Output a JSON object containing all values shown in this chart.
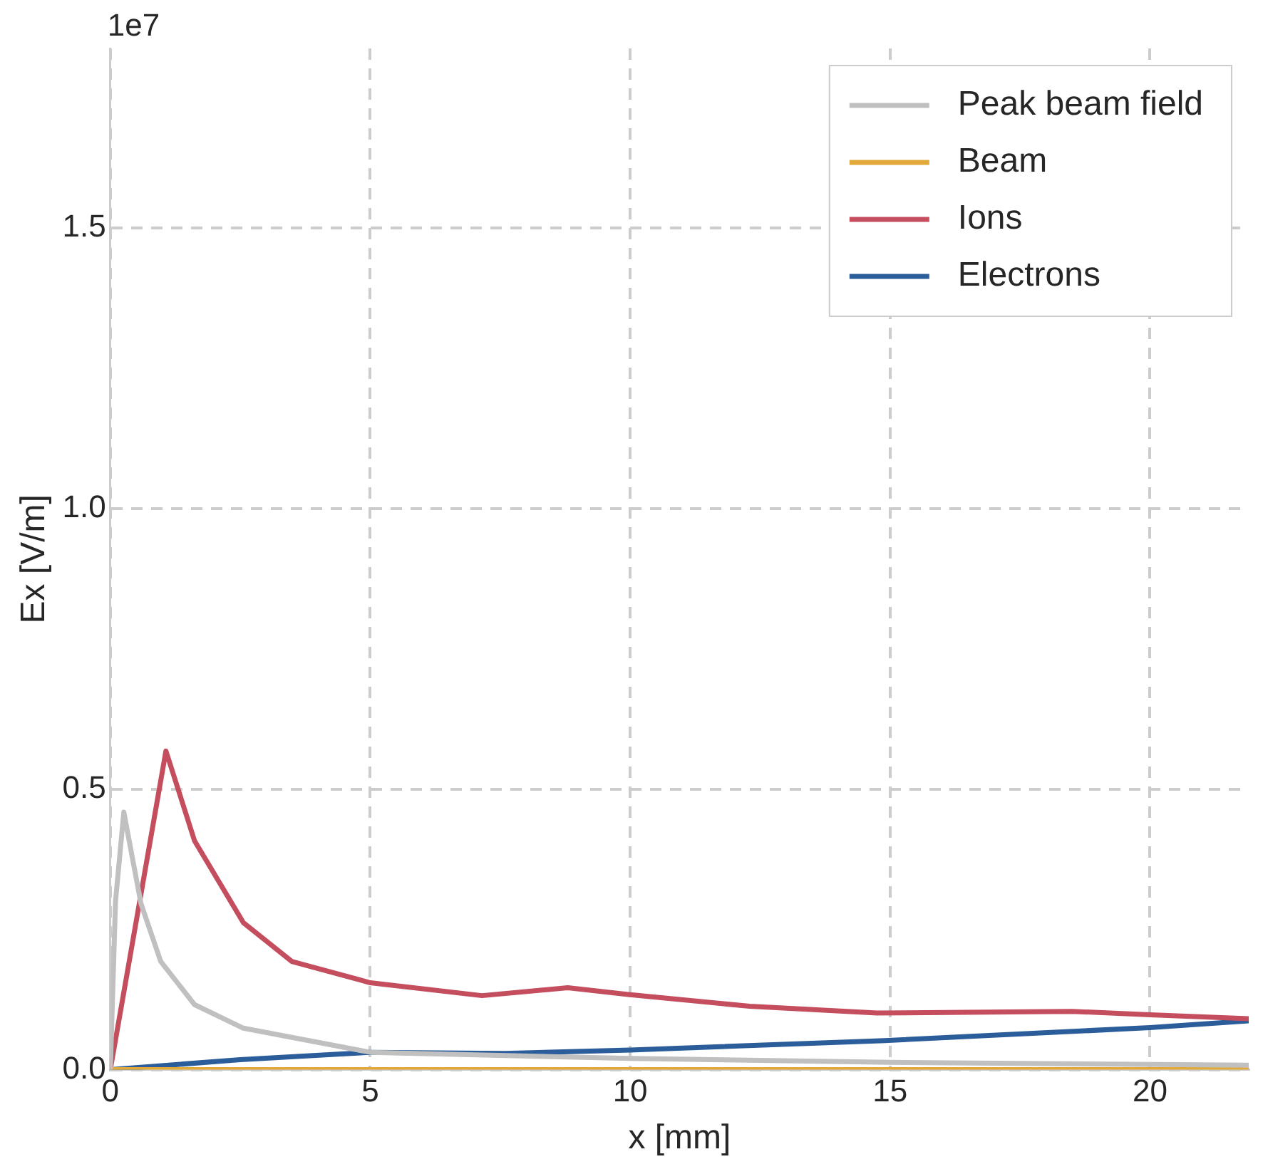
{
  "chart_data": {
    "type": "line",
    "xlabel": "x [mm]",
    "ylabel": "Ex [V/m]",
    "annotations": [
      "1e7"
    ],
    "xlim": [
      0,
      21.9
    ],
    "xticks": [
      0,
      5,
      10,
      15,
      20
    ],
    "ylim": [
      0,
      1.82
    ],
    "yticks": [
      {
        "value": 0,
        "label": "0.0"
      },
      {
        "value": 0.5,
        "label": "0.5"
      },
      {
        "value": 1,
        "label": "1.0"
      },
      {
        "value": 1.5,
        "label": "1.5"
      }
    ],
    "grid": true,
    "legend": "top right",
    "line_style": "solid",
    "marker": "none",
    "series": [
      {
        "name": "Peak beam field",
        "color": "#c0c0c0",
        "x": [
          0,
          0.1,
          0.26,
          0.59,
          0.97,
          1.62,
          2.56,
          5,
          10,
          15,
          21.9
        ],
        "values": [
          0,
          0.3,
          0.459,
          0.296,
          0.193,
          0.116,
          0.074,
          0.031,
          0.02,
          0.013,
          0.008
        ]
      },
      {
        "name": "Beam",
        "color": "#e0a93a",
        "x": [
          0,
          21.9
        ],
        "values": [
          0,
          0
        ]
      },
      {
        "name": "Ions",
        "color": "#c44e5e",
        "x": [
          0,
          1.07,
          1.62,
          2.56,
          3.49,
          5,
          7.15,
          8.8,
          9.96,
          12.3,
          14.75,
          18.5,
          20,
          21.9
        ],
        "values": [
          0,
          0.568,
          0.408,
          0.262,
          0.193,
          0.155,
          0.132,
          0.146,
          0.134,
          0.113,
          0.101,
          0.104,
          0.098,
          0.091
        ]
      },
      {
        "name": "Electrons",
        "color": "#2a5d9a",
        "x": [
          0,
          2.5,
          5,
          7.6,
          10,
          14.9,
          20,
          21.9
        ],
        "values": [
          0,
          0.018,
          0.031,
          0.029,
          0.035,
          0.052,
          0.075,
          0.087
        ]
      }
    ]
  }
}
